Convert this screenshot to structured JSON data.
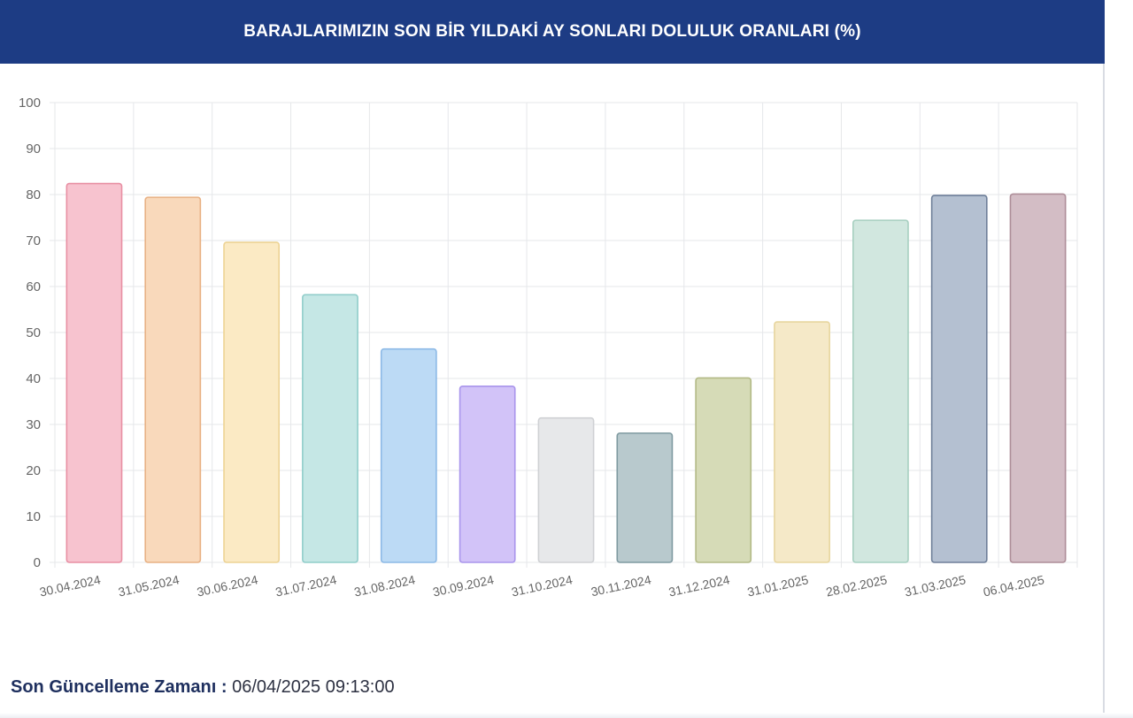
{
  "header": {
    "title": "BARAJLARIMIZIN SON BİR YILDAKİ AY SONLARI DOLULUK ORANLARI (%)"
  },
  "footer": {
    "label": "Son Güncelleme Zamanı :",
    "value": "06/04/2025 09:13:00"
  },
  "colors": {
    "header_bg": "#1d3c84",
    "footer_text": "#1e2f5e"
  },
  "chart_data": {
    "type": "bar",
    "title": "BARAJLARIMIZIN SON BİR YILDAKİ AY SONLARI DOLULUK ORANLARI (%)",
    "xlabel": "",
    "ylabel": "",
    "ylim": [
      0,
      100
    ],
    "yticks": [
      0,
      10,
      20,
      30,
      40,
      50,
      60,
      70,
      80,
      90,
      100
    ],
    "grid": true,
    "legend": "none",
    "categories": [
      "30.04.2024",
      "31.05.2024",
      "30.06.2024",
      "31.07.2024",
      "31.08.2024",
      "30.09.2024",
      "31.10.2024",
      "30.11.2024",
      "31.12.2024",
      "31.01.2025",
      "28.02.2025",
      "31.03.2025",
      "06.04.2025"
    ],
    "values": [
      82.4,
      79.4,
      69.6,
      58.2,
      46.4,
      38.3,
      31.4,
      28.1,
      40.1,
      52.3,
      74.4,
      79.8,
      80.1
    ],
    "bar_fill_colors": [
      "#f7c3cf",
      "#f9d9bb",
      "#fbeac4",
      "#c5e7e5",
      "#bcdaf5",
      "#d2c3f8",
      "#e7e8ea",
      "#b8c9cd",
      "#d6dbb7",
      "#f5e9c8",
      "#d1e7df",
      "#b4c0d1",
      "#d3bdc5"
    ],
    "bar_border_colors": [
      "#e88fa3",
      "#e8b184",
      "#edd394",
      "#90cdca",
      "#8cb9e6",
      "#a995ec",
      "#cfd1d4",
      "#7f9aa1",
      "#b2b985",
      "#e7d59e",
      "#a6cfc0",
      "#6e7f99",
      "#ad8d98"
    ]
  }
}
